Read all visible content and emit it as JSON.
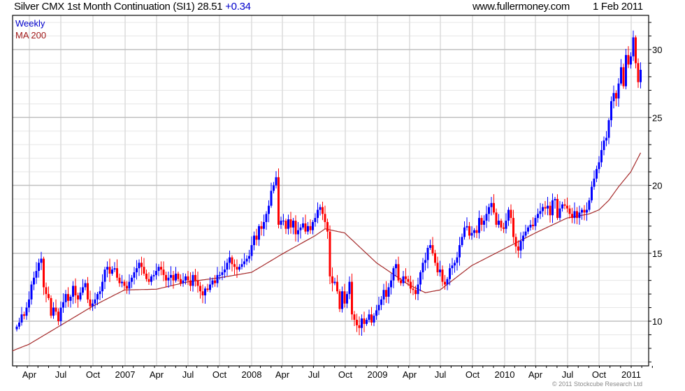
{
  "header": {
    "title": "Silver CMX 1st Month Continuation (SI1) 28.51",
    "change": "+0.34",
    "site": "www.fullermoney.com",
    "date": "1 Feb 2011"
  },
  "legend": {
    "period": "Weekly",
    "ma": "MA 200"
  },
  "copyright": "© 2011 Stockcube Research Ltd",
  "colors": {
    "up": "#0000ff",
    "down": "#ff0000",
    "ma": "#a52a2a",
    "grid_major": "#c0c0c0",
    "grid_minor": "#e6e6e6"
  },
  "chart_data": {
    "type": "candlestick",
    "title": "Silver CMX 1st Month Continuation (SI1)",
    "interval": "weekly",
    "ylim": [
      6.7,
      32.5
    ],
    "y_ticks": [
      "10",
      "15",
      "20",
      "25",
      "30"
    ],
    "x_ticks": [
      "Apr",
      "Jul",
      "Oct",
      "2007",
      "Apr",
      "Jul",
      "Oct",
      "2008",
      "Apr",
      "Jul",
      "Oct",
      "2009",
      "Apr",
      "Jul",
      "Oct",
      "2010",
      "Apr",
      "Jul",
      "Oct",
      "2011"
    ],
    "first_open": 9.4,
    "close": [
      9.6,
      9.9,
      10.5,
      10.4,
      11.0,
      11.6,
      12.7,
      13.2,
      13.7,
      14.3,
      14.6,
      12.5,
      12.0,
      11.7,
      10.4,
      11.0,
      10.7,
      10.0,
      11.0,
      11.4,
      12.0,
      11.5,
      11.8,
      12.6,
      11.9,
      11.6,
      12.1,
      12.5,
      12.8,
      11.6,
      11.1,
      11.3,
      11.6,
      12.0,
      12.2,
      12.9,
      13.8,
      14.0,
      13.5,
      13.8,
      13.9,
      13.2,
      12.8,
      12.9,
      12.6,
      12.4,
      12.9,
      13.2,
      13.6,
      13.9,
      14.3,
      14.0,
      13.5,
      13.1,
      12.9,
      13.3,
      13.4,
      13.7,
      14.0,
      13.8,
      13.4,
      13.0,
      13.2,
      13.4,
      13.0,
      13.5,
      13.1,
      12.8,
      13.0,
      13.3,
      13.0,
      12.6,
      13.4,
      13.0,
      12.6,
      12.2,
      11.9,
      12.4,
      12.3,
      12.7,
      13.0,
      12.8,
      13.4,
      13.4,
      13.6,
      13.8,
      14.3,
      14.7,
      14.2,
      14.0,
      13.8,
      14.0,
      14.2,
      14.4,
      14.6,
      14.8,
      15.6,
      16.3,
      16.0,
      17.0,
      16.8,
      17.3,
      17.9,
      18.5,
      19.6,
      20.0,
      20.6,
      17.1,
      17.4,
      17.4,
      16.8,
      17.5,
      16.9,
      17.4,
      16.4,
      16.7,
      16.9,
      17.2,
      16.6,
      17.0,
      16.7,
      17.3,
      17.6,
      18.2,
      18.4,
      17.9,
      17.3,
      16.6,
      13.3,
      12.8,
      12.9,
      12.2,
      10.9,
      12.2,
      11.3,
      12.0,
      12.9,
      10.5,
      10.1,
      9.7,
      9.5,
      10.2,
      9.8,
      10.1,
      10.5,
      9.9,
      10.4,
      10.8,
      11.2,
      11.6,
      12.3,
      11.8,
      12.5,
      13.0,
      13.9,
      14.2,
      13.0,
      12.8,
      13.3,
      13.1,
      12.9,
      12.4,
      12.3,
      12.0,
      12.7,
      13.6,
      14.3,
      14.5,
      15.4,
      15.6,
      15.0,
      14.3,
      13.6,
      13.8,
      12.9,
      12.7,
      13.1,
      13.9,
      14.1,
      14.3,
      14.7,
      15.6,
      16.2,
      16.9,
      17.0,
      16.3,
      16.5,
      16.7,
      16.5,
      17.6,
      17.1,
      17.4,
      17.9,
      18.4,
      18.7,
      18.0,
      17.1,
      17.4,
      16.9,
      16.8,
      17.4,
      18.2,
      17.6,
      16.2,
      15.5,
      15.2,
      15.9,
      16.3,
      16.6,
      16.9,
      17.1,
      17.0,
      17.6,
      17.9,
      18.1,
      18.4,
      18.3,
      18.5,
      17.8,
      18.9,
      19.0,
      17.6,
      18.3,
      18.6,
      18.5,
      18.3,
      17.9,
      17.6,
      18.1,
      17.6,
      18.0,
      18.2,
      18.0,
      18.2,
      18.9,
      19.9,
      20.5,
      21.2,
      21.7,
      22.6,
      23.3,
      23.5,
      24.8,
      26.2,
      26.8,
      26.4,
      27.5,
      28.7,
      27.3,
      29.6,
      28.9,
      29.5,
      30.9,
      29.0,
      27.6,
      28.51
    ],
    "ma200": [
      {
        "week": -2,
        "value": 7.8
      },
      {
        "week": 5,
        "value": 8.3
      },
      {
        "week": 18,
        "value": 9.7
      },
      {
        "week": 31,
        "value": 11.1
      },
      {
        "week": 44,
        "value": 12.3
      },
      {
        "week": 57,
        "value": 12.35
      },
      {
        "week": 70,
        "value": 12.9
      },
      {
        "week": 83,
        "value": 13.2
      },
      {
        "week": 96,
        "value": 13.6
      },
      {
        "week": 109,
        "value": 15.0
      },
      {
        "week": 122,
        "value": 16.3
      },
      {
        "week": 126,
        "value": 16.8
      },
      {
        "week": 134,
        "value": 16.5
      },
      {
        "week": 147,
        "value": 14.3
      },
      {
        "week": 160,
        "value": 12.7
      },
      {
        "week": 167,
        "value": 12.1
      },
      {
        "week": 173,
        "value": 12.3
      },
      {
        "week": 186,
        "value": 14.1
      },
      {
        "week": 199,
        "value": 15.3
      },
      {
        "week": 212,
        "value": 16.5
      },
      {
        "week": 225,
        "value": 17.6
      },
      {
        "week": 234,
        "value": 17.9
      },
      {
        "week": 238,
        "value": 18.2
      },
      {
        "week": 242,
        "value": 18.9
      },
      {
        "week": 246,
        "value": 19.9
      },
      {
        "week": 251,
        "value": 21.0
      },
      {
        "week": 255,
        "value": 22.4
      }
    ]
  }
}
